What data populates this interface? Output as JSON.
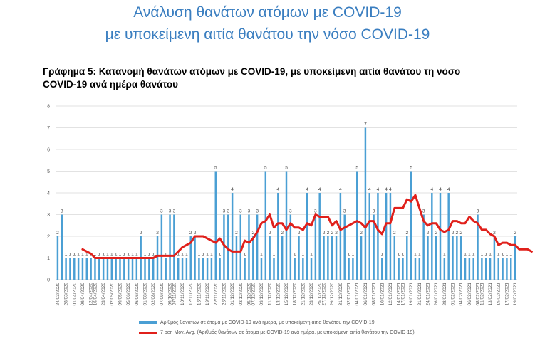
{
  "header": {
    "title_line1": "Ανάλυση θανάτων ατόμων με COVID-19",
    "title_line2": "με υποκείμενη αιτία θανάτου την νόσο COVID-19"
  },
  "chart_header": {
    "line1": "Γράφημα 5: Κατανομή θανάτων ατόμων με COVID-19, με υποκείμενη αιτία θανάτου τη νόσο",
    "line2": "COVID-19 ανά ημέρα θανάτου"
  },
  "colors": {
    "bar": "#4a9fd4",
    "line": "#e0201b",
    "grid": "#d9d9d9",
    "title": "#3a7ec0"
  },
  "chart_data": {
    "type": "bar",
    "ylim": [
      0,
      8
    ],
    "yticks": [
      "0",
      "1",
      "2",
      "3",
      "4",
      "5",
      "6",
      "7",
      "8"
    ],
    "grid": true,
    "legend_position": "bottom",
    "x_tick_labels": [
      "24/03/2020",
      "28/03/2020",
      "01/04/2020",
      "09/04/2020",
      "12/04/2020",
      "16/04/2020",
      "23/04/2020",
      "02/05/2020",
      "09/05/2020",
      "05/06/2020",
      "06/06/2020",
      "01/08/2020",
      "02/08/2020",
      "07/09/2020",
      "09/10/2020",
      "07/11/2020",
      "10/11/2020",
      "12/11/2020",
      "16/11/2020",
      "19/11/2020",
      "22/11/2020",
      "26/11/2020",
      "01/12/2020",
      "03/12/2020",
      "05/12/2020",
      "07/12/2020",
      "09/12/2020",
      "11/12/2020",
      "13/12/2020",
      "15/12/2020",
      "18/12/2020",
      "21/12/2020",
      "23/12/2020",
      "25/12/2020",
      "27/12/2020",
      "29/12/2020",
      "31/12/2020",
      "02/01/2021",
      "04/01/2021",
      "06/01/2021",
      "08/01/2021",
      "10/01/2021",
      "12/01/2021",
      "14/01/2021",
      "17/01/2021",
      "19/01/2021",
      "21/01/2021",
      "24/01/2021",
      "26/01/2021",
      "28/01/2021",
      "01/02/2021",
      "04/02/2021",
      "06/02/2021",
      "08/02/2021",
      "11/02/2021",
      "13/02/2021",
      "15/02/2021",
      "17/02/2021",
      "19/02/2021"
    ],
    "series": [
      {
        "name": "Αριθμός θανάτων σε άτομα με COVID-19 ανά ημέρα, με υποκείμενη αιτία θανάτου την COVID-19",
        "kind": "bar",
        "values": [
          2,
          3,
          1,
          1,
          1,
          1,
          1,
          1,
          1,
          1,
          1,
          1,
          1,
          1,
          1,
          1,
          1,
          1,
          1,
          1,
          2,
          1,
          1,
          1,
          2,
          3,
          1,
          3,
          3,
          1,
          1,
          1,
          2,
          2,
          1,
          1,
          1,
          1,
          5,
          1,
          3,
          3,
          4,
          2,
          3,
          1,
          3,
          2,
          3,
          1,
          5,
          2,
          1,
          4,
          2,
          5,
          3,
          1,
          2,
          1,
          4,
          1,
          3,
          4,
          2,
          2,
          2,
          2,
          4,
          3,
          1,
          1,
          5,
          2,
          7,
          4,
          3,
          4,
          1,
          4,
          4,
          2,
          1,
          1,
          2,
          5,
          1,
          1,
          3,
          2,
          4,
          2,
          4,
          1,
          4,
          2,
          2,
          2,
          1,
          1,
          1,
          3,
          1,
          1,
          1,
          2,
          1,
          1,
          1,
          1,
          2
        ],
        "labels_shown": true
      },
      {
        "name": "7 per. Mov. Avg. (Αριθμός θανάτων σε άτομα με COVID-19 ανά ημέρα, με υποκείμενη αιτία θανάτου την COVID-19)",
        "kind": "line",
        "start_index": 6,
        "values": [
          1.4,
          1.3,
          1.2,
          1.0,
          1.0,
          1.0,
          1.0,
          1.0,
          1.0,
          1.0,
          1.0,
          1.0,
          1.0,
          1.0,
          1.0,
          1.0,
          1.0,
          1.0,
          1.1,
          1.1,
          1.1,
          1.1,
          1.1,
          1.3,
          1.5,
          1.6,
          1.7,
          2.0,
          2.0,
          2.0,
          1.9,
          1.8,
          1.7,
          1.9,
          1.6,
          1.4,
          1.3,
          1.3,
          1.3,
          1.8,
          1.7,
          1.9,
          2.2,
          2.6,
          2.7,
          3.0,
          2.4,
          2.6,
          2.6,
          2.3,
          2.6,
          2.4,
          2.4,
          2.3,
          2.6,
          2.5,
          3.0,
          2.9,
          2.9,
          2.9,
          2.5,
          2.7,
          2.3,
          2.4,
          2.5,
          2.6,
          2.7,
          2.6,
          2.4,
          2.7,
          2.7,
          2.3,
          2.1,
          2.6,
          2.6,
          3.3,
          3.3,
          3.3,
          3.7,
          3.6,
          3.9,
          3.3,
          2.7,
          2.5,
          2.6,
          2.6,
          2.3,
          2.2,
          2.3,
          2.7,
          2.7,
          2.6,
          2.6,
          2.9,
          2.7,
          2.6,
          2.3,
          2.3,
          2.1,
          2.0,
          1.6,
          1.7,
          1.7,
          1.6,
          1.6,
          1.4,
          1.4,
          1.4,
          1.3
        ]
      }
    ]
  }
}
